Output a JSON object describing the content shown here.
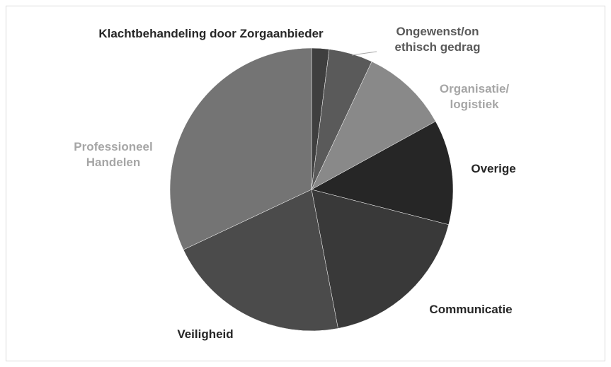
{
  "chart_data": {
    "type": "pie",
    "categories": [
      "Klachtbehandeling door Zorgaanbieder",
      "Ongewenst/on\nethisch gedrag",
      "Organisatie/\nlogistiek",
      "Overige",
      "Communicatie",
      "Veiligheid",
      "Professioneel\nHandelen"
    ],
    "values": [
      2,
      5,
      10,
      12,
      18,
      21,
      32
    ],
    "colors": [
      "#3f3f3f",
      "#5a5a5a",
      "#898989",
      "#262626",
      "#393939",
      "#4b4b4b",
      "#747474"
    ]
  }
}
